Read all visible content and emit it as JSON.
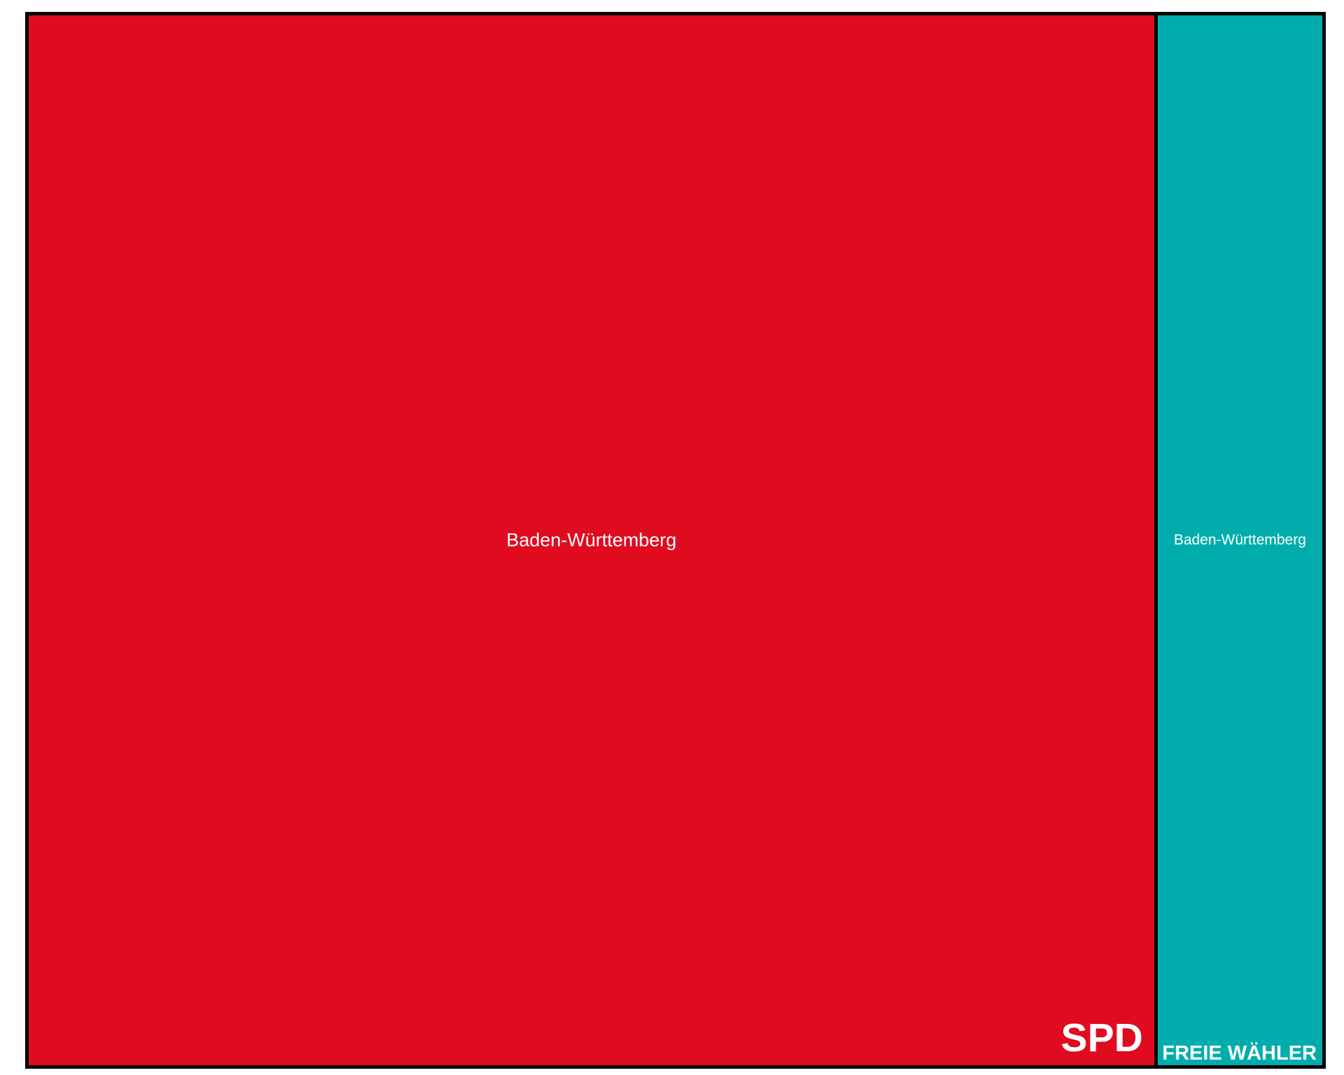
{
  "chart_data": {
    "type": "treemap",
    "groups": [
      {
        "name": "SPD",
        "color": "#e00b1f",
        "children": [
          {
            "label": "Baden-Württemberg",
            "value": 87
          }
        ]
      },
      {
        "name": "FREIE WÄHLER",
        "color": "#00adac",
        "children": [
          {
            "label": "Baden-Württemberg",
            "value": 13
          }
        ]
      }
    ]
  }
}
